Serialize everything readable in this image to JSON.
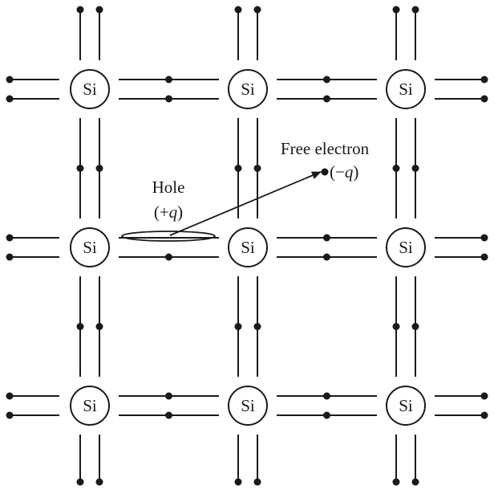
{
  "atom_label": "Si",
  "lattice": {
    "rows": 3,
    "cols": 3,
    "missing_electron": {
      "row": 1,
      "col": 0,
      "side": "right",
      "strand": "upper"
    }
  },
  "hole": {
    "line1": "Hole",
    "line2_open": "(+",
    "line2_var": "q",
    "line2_close": ")"
  },
  "free_electron": {
    "line1": "Free electron",
    "open": "(−",
    "var": "q",
    "close": ")"
  },
  "colors": {
    "ink": "#1a1a1a",
    "background": "#ffffff"
  }
}
